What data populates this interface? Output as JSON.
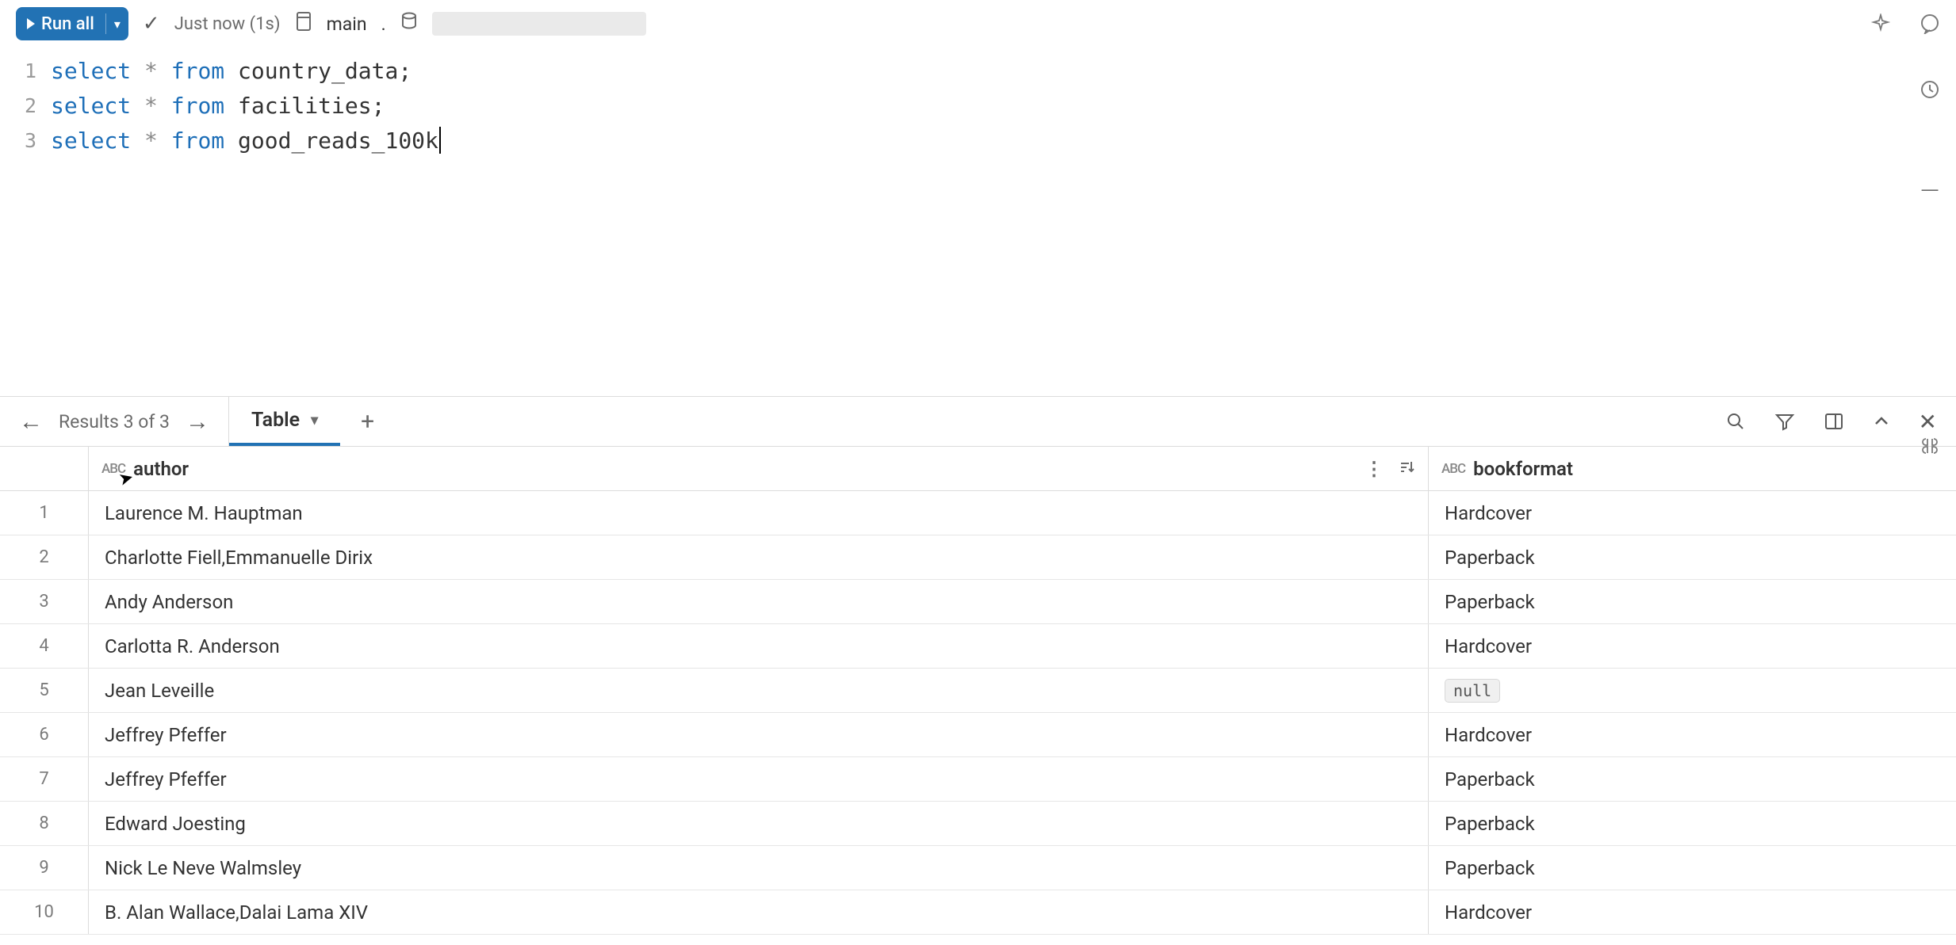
{
  "toolbar": {
    "run_label": "Run all",
    "status": "Just now (1s)",
    "schema": "main",
    "schema_separator": "."
  },
  "editor": {
    "lines": [
      {
        "n": "1",
        "keyword1": "select",
        "op": " * ",
        "keyword2": "from",
        "ident": " country_data;"
      },
      {
        "n": "2",
        "keyword1": "select",
        "op": " * ",
        "keyword2": "from",
        "ident": " facilities;"
      },
      {
        "n": "3",
        "keyword1": "select",
        "op": " * ",
        "keyword2": "from",
        "ident": " good_reads_100k"
      }
    ]
  },
  "results": {
    "label": "Results 3 of 3",
    "tab_label": "Table"
  },
  "table": {
    "columns": [
      {
        "name": "author",
        "type": "ABC"
      },
      {
        "name": "bookformat",
        "type": "ABC"
      }
    ],
    "rows": [
      {
        "n": "1",
        "author": "Laurence M. Hauptman",
        "bookformat": "Hardcover"
      },
      {
        "n": "2",
        "author": "Charlotte Fiell,Emmanuelle Dirix",
        "bookformat": "Paperback"
      },
      {
        "n": "3",
        "author": "Andy Anderson",
        "bookformat": "Paperback"
      },
      {
        "n": "4",
        "author": "Carlotta R. Anderson",
        "bookformat": "Hardcover"
      },
      {
        "n": "5",
        "author": "Jean Leveille",
        "bookformat": null
      },
      {
        "n": "6",
        "author": "Jeffrey Pfeffer",
        "bookformat": "Hardcover"
      },
      {
        "n": "7",
        "author": "Jeffrey Pfeffer",
        "bookformat": "Paperback"
      },
      {
        "n": "8",
        "author": "Edward Joesting",
        "bookformat": "Paperback"
      },
      {
        "n": "9",
        "author": "Nick Le Neve Walmsley",
        "bookformat": "Paperback"
      },
      {
        "n": "10",
        "author": "B. Alan Wallace,Dalai Lama XIV",
        "bookformat": "Hardcover"
      }
    ],
    "null_label": "null"
  },
  "colors": {
    "primary": "#2272b4",
    "keyword": "#1e6fb8",
    "border": "#dcdcdc",
    "text": "#333333",
    "muted": "#6b6b6b"
  }
}
